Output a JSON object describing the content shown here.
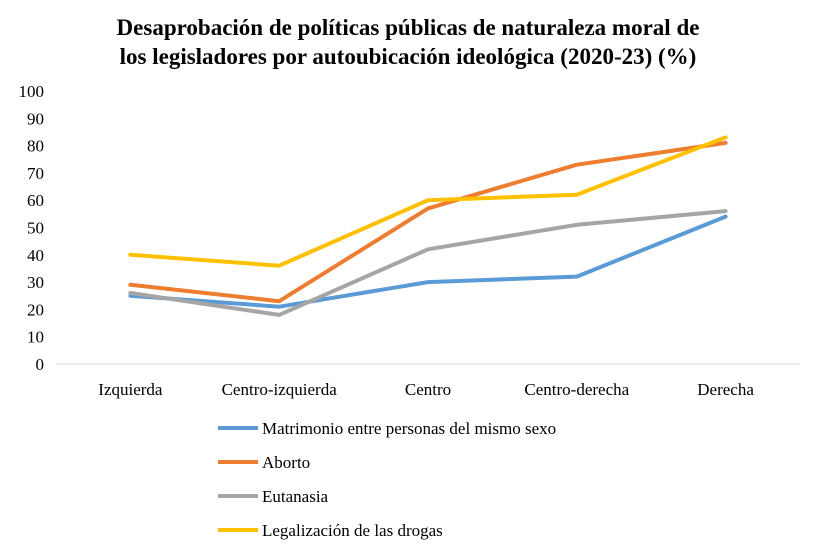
{
  "chart_data": {
    "type": "line",
    "title_lines": [
      "Desaprobación de políticas públicas de naturaleza moral de",
      "los legisladores por autoubicación ideológica (2020-23) (%)"
    ],
    "categories": [
      "Izquierda",
      "Centro-izquierda",
      "Centro",
      "Centro-derecha",
      "Derecha"
    ],
    "ylim": [
      0,
      100
    ],
    "yticks": [
      "0",
      "10",
      "20",
      "30",
      "40",
      "50",
      "60",
      "70",
      "80",
      "90",
      "100"
    ],
    "grid": false,
    "legend_position": "bottom",
    "series": [
      {
        "name": "Matrimonio entre personas del mismo sexo",
        "color": "#5b9bd5",
        "values": [
          25,
          21,
          30,
          32,
          54
        ]
      },
      {
        "name": "Aborto",
        "color": "#ed7d31",
        "values": [
          29,
          23,
          57,
          73,
          81
        ]
      },
      {
        "name": "Eutanasia",
        "color": "#a5a5a5",
        "values": [
          26,
          18,
          42,
          51,
          56
        ]
      },
      {
        "name": "Legalización de las drogas",
        "color": "#ffc000",
        "values": [
          40,
          36,
          60,
          62,
          83
        ]
      }
    ]
  }
}
